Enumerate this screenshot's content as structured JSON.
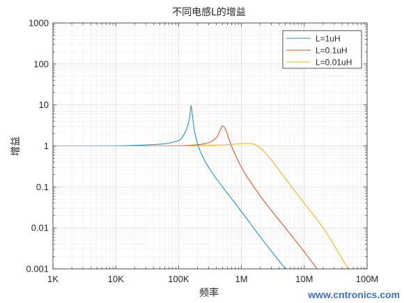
{
  "chart_data": {
    "type": "line",
    "title": "不同电感L的增益",
    "xlabel": "频率",
    "ylabel": "增益",
    "xscale": "log",
    "yscale": "log",
    "xlim": [
      1000,
      100000000
    ],
    "ylim": [
      0.001,
      1000
    ],
    "xticks": [
      1000,
      10000,
      100000,
      1000000,
      10000000,
      100000000
    ],
    "xtick_labels": [
      "1K",
      "10K",
      "100K",
      "1M",
      "10M",
      "100M"
    ],
    "yticks": [
      0.001,
      0.01,
      0.1,
      1,
      10,
      100,
      1000
    ],
    "ytick_labels": [
      "0.001",
      "0.01",
      "0.1",
      "1",
      "10",
      "100",
      "1000"
    ],
    "grid": true,
    "minor_grid": true,
    "legend_position": "top-right",
    "series": [
      {
        "name": "L=1uH",
        "color": "#1f8fd0",
        "x": [
          1000,
          10000,
          50000,
          100000,
          130000,
          150000,
          158000,
          165000,
          180000,
          220000,
          300000,
          500000,
          1000000,
          2000000,
          5000000
        ],
        "y": [
          1.0,
          1.01,
          1.1,
          1.35,
          2.3,
          5.0,
          9.7,
          6.0,
          2.2,
          0.75,
          0.3,
          0.1,
          0.025,
          0.006,
          0.001
        ]
      },
      {
        "name": "L=0.1uH",
        "color": "#d95319",
        "x": [
          1000,
          10000,
          100000,
          200000,
          300000,
          400000,
          460000,
          500000,
          560000,
          650000,
          800000,
          1000000,
          2000000,
          5000000,
          10000000,
          16000000
        ],
        "y": [
          1.0,
          1.0,
          1.01,
          1.07,
          1.2,
          1.6,
          2.4,
          3.1,
          2.5,
          1.3,
          0.6,
          0.3,
          0.06,
          0.01,
          0.0026,
          0.001
        ]
      },
      {
        "name": "L=0.01uH",
        "color": "#edb120",
        "x": [
          1000,
          10000,
          100000,
          500000,
          1000000,
          1300000,
          1600000,
          2000000,
          3000000,
          5000000,
          10000000,
          20000000,
          50000000
        ],
        "y": [
          1.0,
          1.0,
          1.0,
          1.06,
          1.13,
          1.15,
          1.1,
          0.9,
          0.45,
          0.16,
          0.04,
          0.01,
          0.001
        ]
      }
    ]
  },
  "watermark": "www.cntronics.com"
}
